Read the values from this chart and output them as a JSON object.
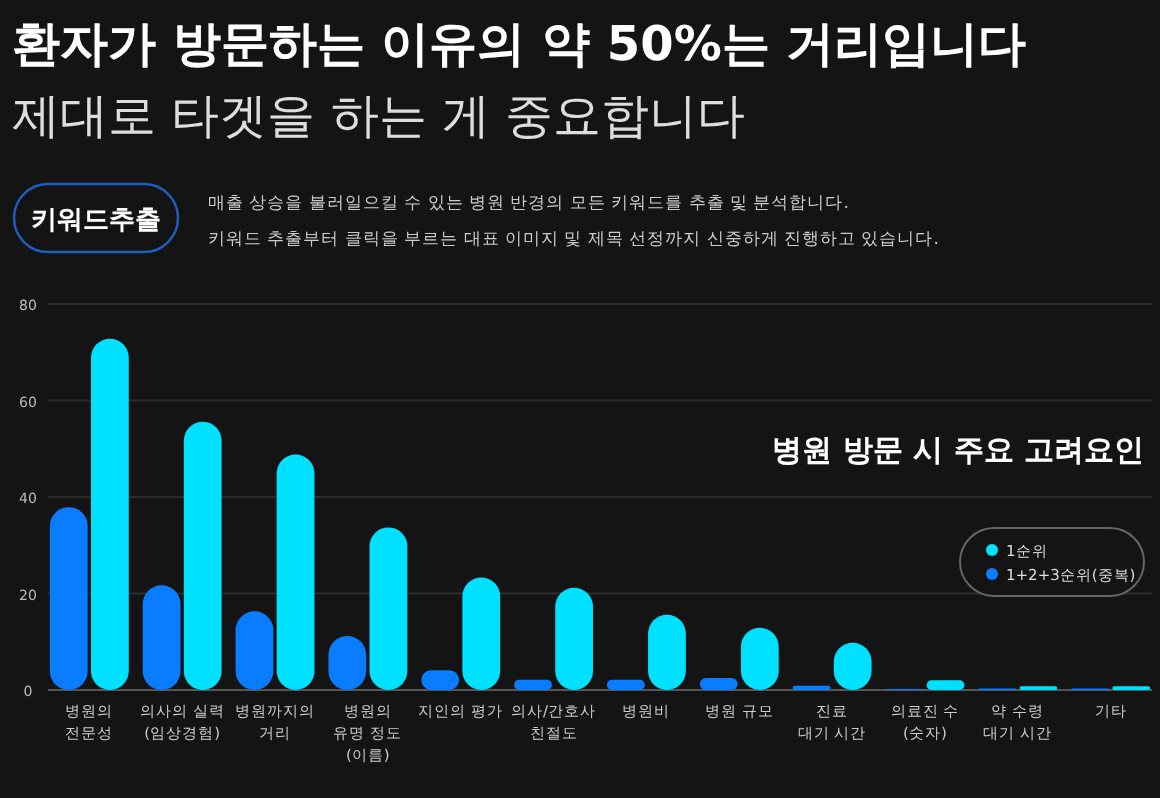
{
  "chart_data": {
    "type": "bar",
    "title": "환자가 방문하는 이유의 약 50%는 거리입니다",
    "subtitle": "제대로 타겟을 하는 게 중요합니다",
    "annotations": [
      "키워드추출",
      "매출 상승을 불러일으킬 수 있는 병원 반경의 모든 키워드를 추출 및 분석합니다.",
      "키워드 추출부터 클릭을 부르는 대표 이미지 및 제목 선정까지 신중하게 진행하고 있습니다.",
      "병원 방문 시 주요 고려요인"
    ],
    "categories": [
      "병원의\n전문성",
      "의사의 실력\n(임상경험)",
      "병원까지의\n거리",
      "병원의\n유명 정도\n(이름)",
      "지인의 평가",
      "의사/간호사\n친절도",
      "병원비",
      "병원 규모",
      "진료\n대기 시간",
      "의료진 수\n(숫자)",
      "약 수령\n대기 시간",
      "기타"
    ],
    "series": [
      {
        "name": "1+2+3순위(중복)",
        "color": "#0a7cff",
        "values": [
          37.9,
          21.7,
          16.3,
          11.2,
          4.1,
          2.1,
          2.1,
          2.5,
          0.9,
          0.2,
          0.3,
          0.3
        ]
      },
      {
        "name": "1순위",
        "color": "#00e0ff",
        "values": [
          72.8,
          55.6,
          48.8,
          33.7,
          23.3,
          21.2,
          15.6,
          12.9,
          9.8,
          2.0,
          0.8,
          0.8
        ]
      }
    ],
    "ylim": [
      0,
      80
    ],
    "yticks": [
      0,
      20,
      40,
      60,
      80
    ],
    "grid": "y",
    "legend": "right"
  }
}
